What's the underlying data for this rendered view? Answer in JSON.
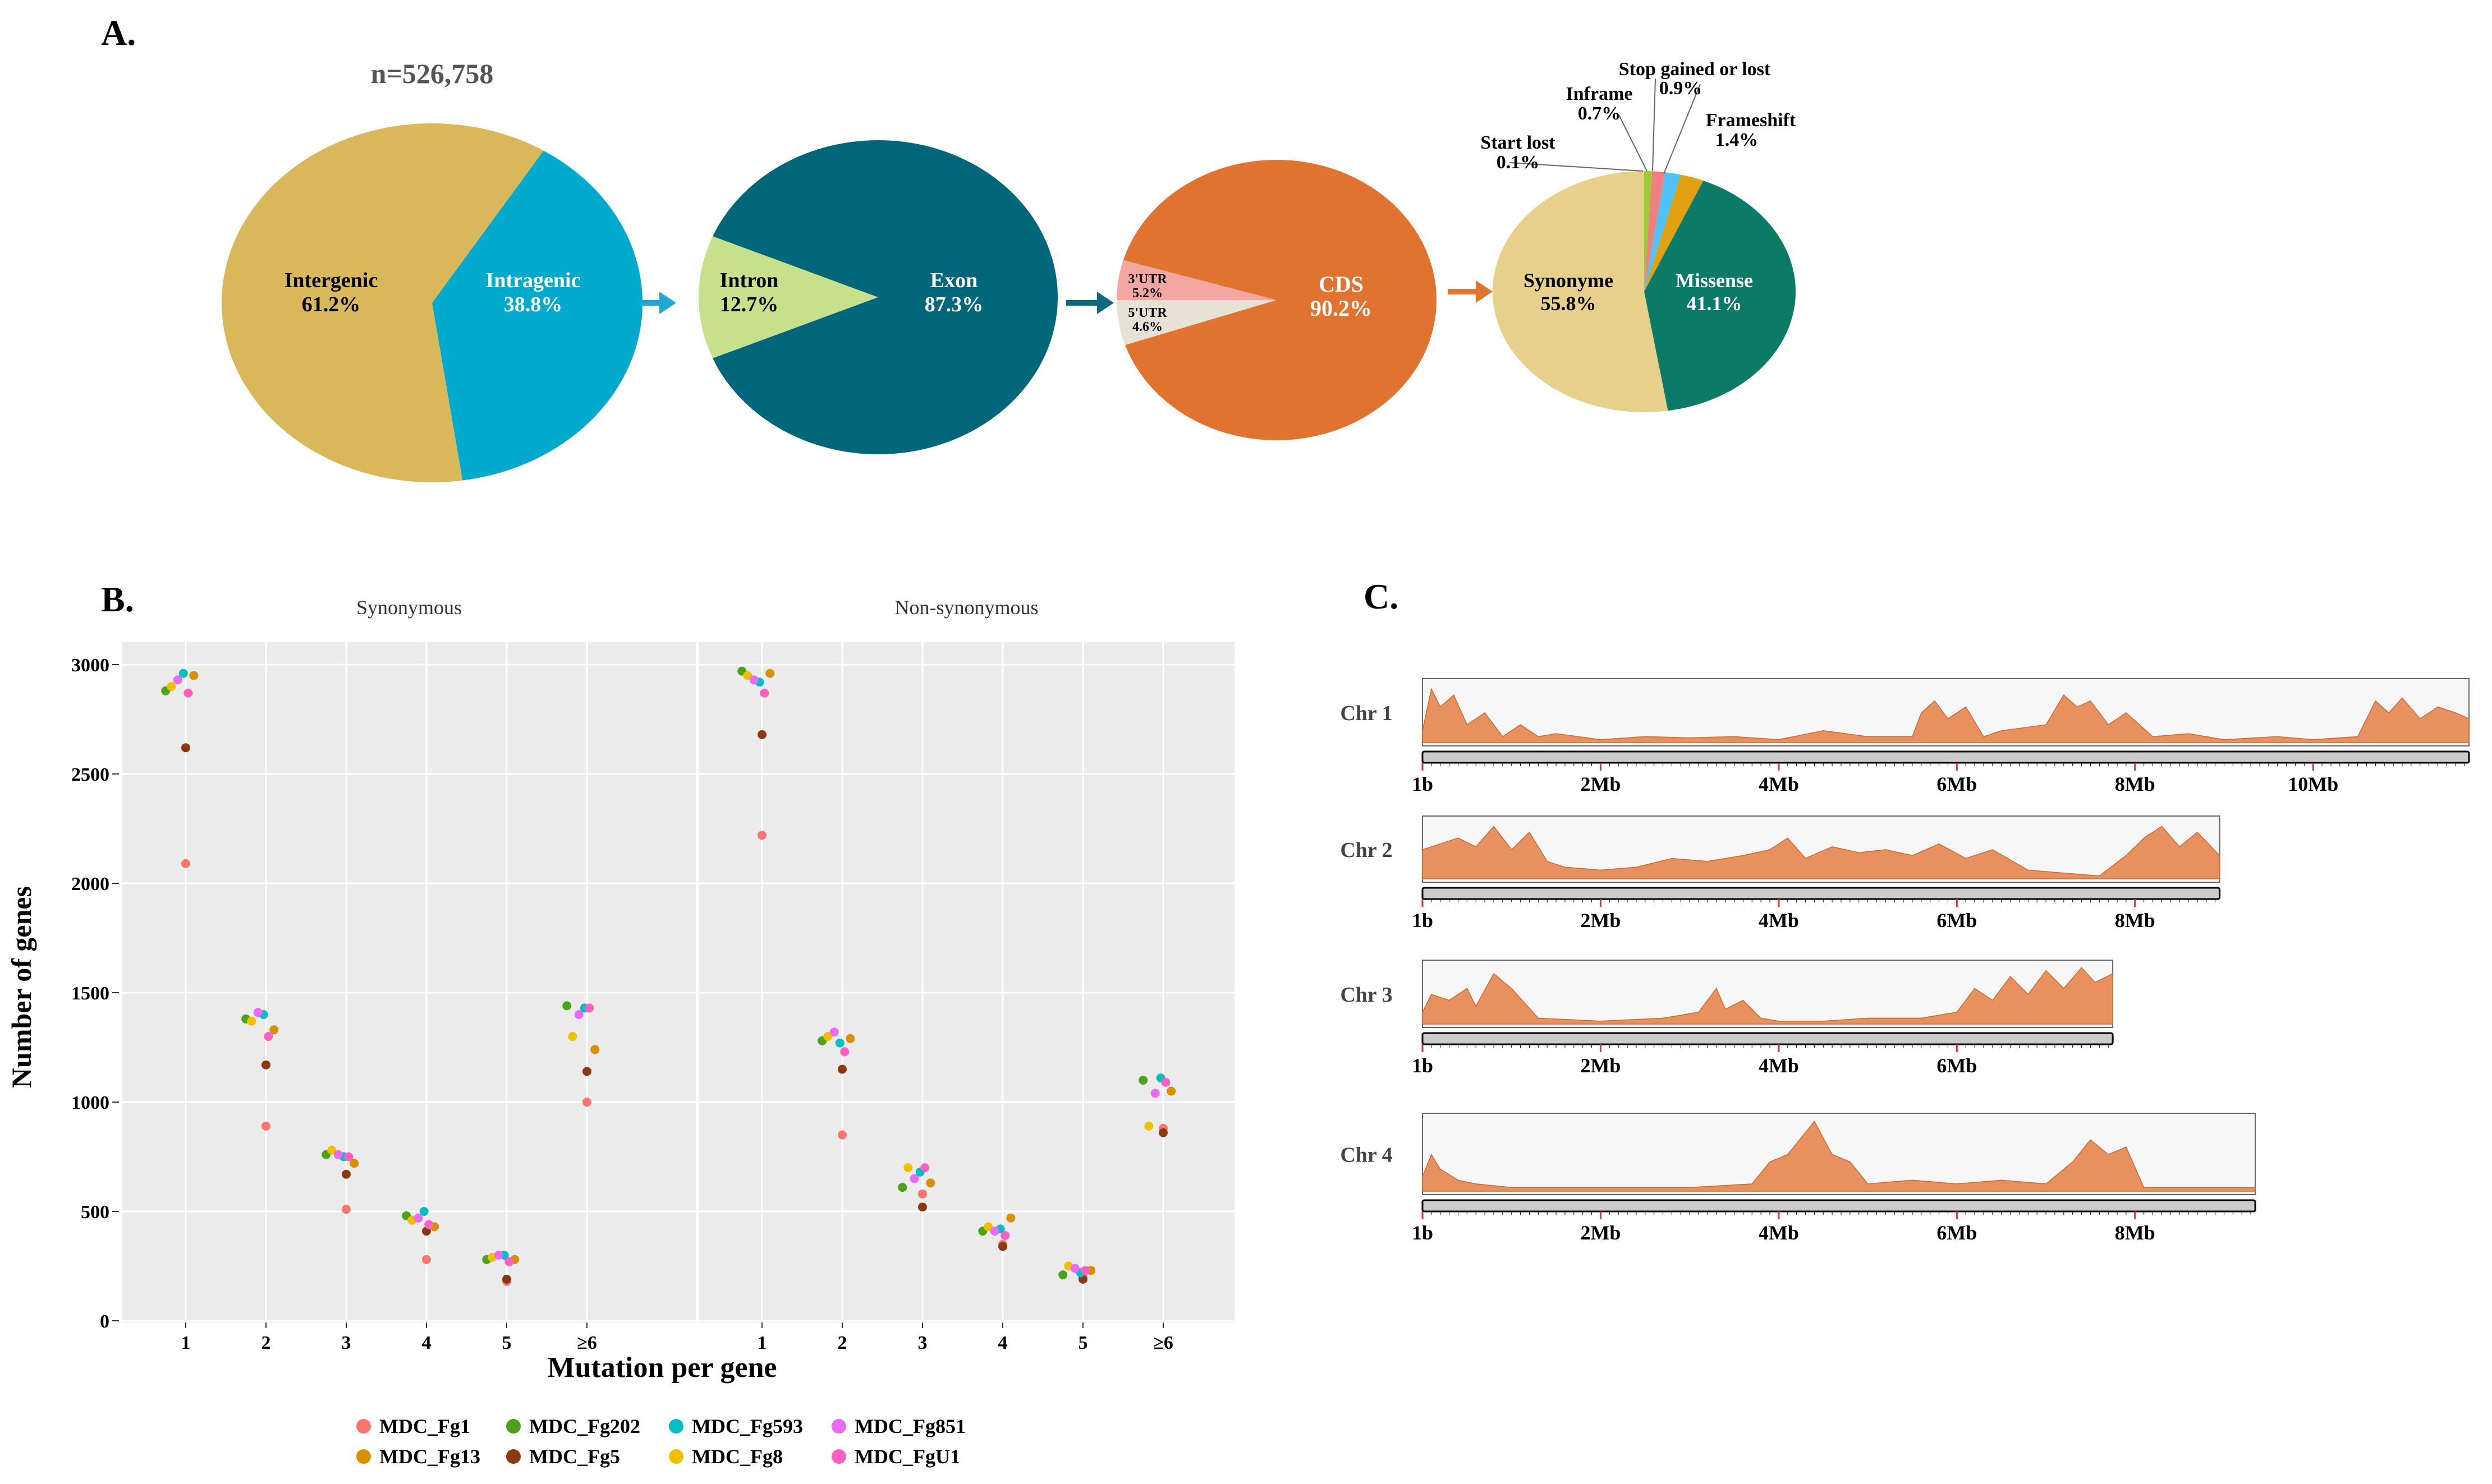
{
  "panels": {
    "a": "A.",
    "b": "B.",
    "c": "C."
  },
  "colors": {
    "intergenic": "#D9B85C",
    "intragenic": "#00AACC",
    "intron": "#C6E08C",
    "exon": "#00677A",
    "cds": "#E07330",
    "utr3": "#E8E1D6",
    "utr5": "#F4A6A0",
    "synonyme": "#E6D08C",
    "missense": "#0B7B67",
    "startlost": "#9ACD32",
    "inframe": "#F08080",
    "stopgained": "#4FC3F7",
    "frameshift": "#E0A010",
    "arrow1": "#1DA8D6",
    "arrow2": "#0B6B7E",
    "arrow3": "#E07330",
    "panel_bg": "#EBEBEB",
    "coverage": "#E8915E",
    "coverage_line": "#C86A34"
  },
  "chart_data": [
    {
      "type": "pie",
      "title": "n=526,758",
      "slices": [
        {
          "label": "Intergenic",
          "value": 61.2,
          "display": "61.2%",
          "color_key": "intergenic"
        },
        {
          "label": "Intragenic",
          "value": 38.8,
          "display": "38.8%",
          "color_key": "intragenic"
        }
      ]
    },
    {
      "type": "pie",
      "slices": [
        {
          "label": "Intron",
          "value": 12.7,
          "display": "12.7%",
          "color_key": "intron"
        },
        {
          "label": "Exon",
          "value": 87.3,
          "display": "87.3%",
          "color_key": "exon"
        }
      ]
    },
    {
      "type": "pie",
      "slices": [
        {
          "label": "CDS",
          "value": 90.2,
          "display": "90.2%",
          "color_key": "cds"
        },
        {
          "label": "3'UTR",
          "value": 5.2,
          "display": "5.2%",
          "color_key": "utr3"
        },
        {
          "label": "5'UTR",
          "value": 4.6,
          "display": "4.6%",
          "color_key": "utr5"
        }
      ]
    },
    {
      "type": "pie",
      "slices": [
        {
          "label": "Synonyme",
          "value": 55.8,
          "display": "55.8%",
          "color_key": "synonyme"
        },
        {
          "label": "Missense",
          "value": 41.1,
          "display": "41.1%",
          "color_key": "missense"
        },
        {
          "label": "Start lost",
          "value": 0.1,
          "display": "0.1%",
          "color_key": "startlost"
        },
        {
          "label": "Inframe",
          "value": 0.7,
          "display": "0.7%",
          "color_key": "inframe"
        },
        {
          "label": "Stop gained or lost",
          "value": 0.9,
          "display": "0.9%",
          "color_key": "stopgained"
        },
        {
          "label": "Frameshift",
          "value": 1.4,
          "display": "1.4%",
          "color_key": "frameshift"
        }
      ]
    },
    {
      "type": "scatter",
      "facets": [
        "Synonymous",
        "Non-synonymous"
      ],
      "xlabel": "Mutation per gene",
      "ylabel": "Number of genes",
      "categories": [
        "1",
        "2",
        "3",
        "4",
        "5",
        "≥6"
      ],
      "yticks": [
        0,
        500,
        1000,
        1500,
        2000,
        2500,
        3000
      ],
      "ylim": [
        0,
        3080
      ],
      "grid": true,
      "legend_position": "bottom",
      "series": [
        {
          "name": "MDC_Fg1",
          "color": "#F8766D",
          "values": {
            "Synonymous": [
              2090,
              890,
              510,
              280,
              180,
              1000
            ],
            "Non-synonymous": [
              2220,
              850,
              580,
              350,
              200,
              880
            ]
          }
        },
        {
          "name": "MDC_Fg13",
          "color": "#D89000",
          "values": {
            "Synonymous": [
              2950,
              1330,
              720,
              430,
              280,
              1240
            ],
            "Non-synonymous": [
              2960,
              1290,
              630,
              470,
              230,
              1050
            ]
          }
        },
        {
          "name": "MDC_Fg202",
          "color": "#4CA319",
          "values": {
            "Synonymous": [
              2880,
              1380,
              760,
              480,
              280,
              1440
            ],
            "Non-synonymous": [
              2970,
              1280,
              610,
              410,
              210,
              1100
            ]
          }
        },
        {
          "name": "MDC_Fg5",
          "color": "#8B3A0F",
          "values": {
            "Synonymous": [
              2620,
              1170,
              670,
              410,
              190,
              1140
            ],
            "Non-synonymous": [
              2680,
              1150,
              520,
              340,
              190,
              860
            ]
          }
        },
        {
          "name": "MDC_Fg593",
          "color": "#00BFC4",
          "values": {
            "Synonymous": [
              2960,
              1400,
              750,
              500,
              300,
              1430
            ],
            "Non-synonymous": [
              2920,
              1270,
              680,
              420,
              220,
              1110
            ]
          }
        },
        {
          "name": "MDC_Fg8",
          "color": "#F0C000",
          "values": {
            "Synonymous": [
              2900,
              1370,
              780,
              460,
              290,
              1300
            ],
            "Non-synonymous": [
              2950,
              1300,
              700,
              430,
              250,
              890
            ]
          }
        },
        {
          "name": "MDC_Fg851",
          "color": "#E76BF3",
          "values": {
            "Synonymous": [
              2930,
              1410,
              760,
              470,
              300,
              1400
            ],
            "Non-synonymous": [
              2930,
              1320,
              650,
              410,
              240,
              1040
            ]
          }
        },
        {
          "name": "MDC_FgU1",
          "color": "#FF61C3",
          "values": {
            "Synonymous": [
              2870,
              1300,
              750,
              440,
              270,
              1430
            ],
            "Non-synonymous": [
              2870,
              1230,
              700,
              390,
              230,
              1090
            ]
          }
        }
      ]
    },
    {
      "type": "area",
      "x_unit": "Mb",
      "chromosomes": [
        {
          "label": "Chr 1",
          "length": 11.75,
          "ticks": [
            {
              "pos": 0,
              "label": "1b"
            },
            {
              "pos": 2,
              "label": "2Mb"
            },
            {
              "pos": 4,
              "label": "4Mb"
            },
            {
              "pos": 6,
              "label": "6Mb"
            },
            {
              "pos": 8,
              "label": "8Mb"
            },
            {
              "pos": 10,
              "label": "10Mb"
            }
          ],
          "x": [
            0,
            0.1,
            0.2,
            0.35,
            0.5,
            0.7,
            0.9,
            1.1,
            1.3,
            1.5,
            2,
            2.5,
            3,
            3.5,
            4,
            4.5,
            5,
            5.5,
            5.6,
            5.75,
            5.9,
            6.1,
            6.3,
            6.5,
            7,
            7.2,
            7.35,
            7.5,
            7.7,
            7.9,
            8.2,
            8.6,
            9,
            9.6,
            10,
            10.5,
            10.7,
            10.85,
            11,
            11.2,
            11.4,
            11.6,
            11.75
          ],
          "y": [
            0.2,
            0.9,
            0.6,
            0.8,
            0.3,
            0.5,
            0.1,
            0.3,
            0.1,
            0.15,
            0.05,
            0.1,
            0.08,
            0.1,
            0.05,
            0.2,
            0.1,
            0.1,
            0.5,
            0.7,
            0.4,
            0.6,
            0.1,
            0.2,
            0.3,
            0.8,
            0.6,
            0.7,
            0.3,
            0.5,
            0.1,
            0.15,
            0.05,
            0.1,
            0.05,
            0.1,
            0.7,
            0.5,
            0.75,
            0.4,
            0.6,
            0.5,
            0.4
          ]
        },
        {
          "label": "Chr 2",
          "length": 8.95,
          "ticks": [
            {
              "pos": 0,
              "label": "1b"
            },
            {
              "pos": 2,
              "label": "2Mb"
            },
            {
              "pos": 4,
              "label": "4Mb"
            },
            {
              "pos": 6,
              "label": "6Mb"
            },
            {
              "pos": 8,
              "label": "8Mb"
            }
          ],
          "x": [
            0,
            0.2,
            0.4,
            0.6,
            0.8,
            1.0,
            1.2,
            1.4,
            1.6,
            2,
            2.4,
            2.8,
            3.2,
            3.6,
            3.9,
            4.1,
            4.3,
            4.6,
            4.9,
            5.2,
            5.5,
            5.8,
            6.1,
            6.4,
            6.8,
            7.2,
            7.6,
            7.9,
            8.1,
            8.3,
            8.5,
            8.7,
            8.95
          ],
          "y": [
            0.5,
            0.6,
            0.7,
            0.55,
            0.9,
            0.5,
            0.8,
            0.3,
            0.2,
            0.15,
            0.2,
            0.35,
            0.3,
            0.4,
            0.5,
            0.7,
            0.35,
            0.55,
            0.45,
            0.5,
            0.4,
            0.6,
            0.35,
            0.5,
            0.15,
            0.1,
            0.05,
            0.4,
            0.7,
            0.9,
            0.55,
            0.8,
            0.4
          ]
        },
        {
          "label": "Chr 3",
          "length": 7.75,
          "ticks": [
            {
              "pos": 0,
              "label": "1b"
            },
            {
              "pos": 2,
              "label": "2Mb"
            },
            {
              "pos": 4,
              "label": "4Mb"
            },
            {
              "pos": 6,
              "label": "6Mb"
            }
          ],
          "x": [
            0,
            0.1,
            0.3,
            0.5,
            0.6,
            0.8,
            1.0,
            1.3,
            2,
            2.7,
            3.1,
            3.3,
            3.4,
            3.6,
            3.8,
            4,
            4.5,
            5,
            5.6,
            6,
            6.2,
            6.4,
            6.6,
            6.8,
            7,
            7.2,
            7.4,
            7.55,
            7.75
          ],
          "y": [
            0.2,
            0.5,
            0.4,
            0.6,
            0.3,
            0.85,
            0.6,
            0.1,
            0.05,
            0.1,
            0.2,
            0.6,
            0.25,
            0.4,
            0.1,
            0.05,
            0.05,
            0.1,
            0.1,
            0.2,
            0.6,
            0.4,
            0.8,
            0.5,
            0.9,
            0.6,
            0.95,
            0.7,
            0.85
          ]
        },
        {
          "label": "Chr 4",
          "length": 9.35,
          "ticks": [
            {
              "pos": 0,
              "label": "1b"
            },
            {
              "pos": 2,
              "label": "2Mb"
            },
            {
              "pos": 4,
              "label": "4Mb"
            },
            {
              "pos": 6,
              "label": "6Mb"
            },
            {
              "pos": 8,
              "label": "8Mb"
            }
          ],
          "x": [
            0,
            0.1,
            0.2,
            0.4,
            0.6,
            1,
            2,
            3,
            3.7,
            3.9,
            4.1,
            4.3,
            4.4,
            4.6,
            4.8,
            5,
            5.5,
            6,
            6.5,
            7,
            7.3,
            7.5,
            7.7,
            7.9,
            8.1,
            8.5,
            9,
            9.35
          ],
          "y": [
            0.2,
            0.5,
            0.3,
            0.15,
            0.1,
            0.05,
            0.05,
            0.05,
            0.1,
            0.4,
            0.5,
            0.8,
            0.95,
            0.5,
            0.4,
            0.1,
            0.15,
            0.1,
            0.15,
            0.1,
            0.4,
            0.7,
            0.5,
            0.6,
            0.05,
            0.05,
            0.05,
            0.05
          ]
        }
      ]
    }
  ]
}
